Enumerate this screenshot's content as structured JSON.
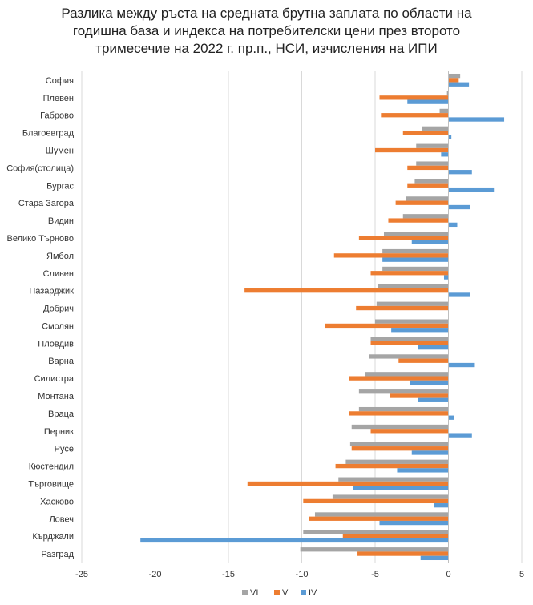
{
  "chart_data": {
    "type": "bar",
    "orientation": "horizontal",
    "title_lines": [
      "Разлика между ръста на средната брутна заплата по области на",
      "годишна база и индекса на потребителски цени през второто",
      "тримесечие на 2022 г. пр.п., НСИ, изчисления на ИПИ"
    ],
    "xlim": [
      -25,
      5
    ],
    "xticks": [
      -25,
      -20,
      -15,
      -10,
      -5,
      0,
      5
    ],
    "grid": true,
    "legend_position": "bottom",
    "categories": [
      "София",
      "Плевен",
      "Габрово",
      "Благоевград",
      "Шумен",
      "София(столица)",
      "Бургас",
      "Стара Загора",
      "Видин",
      "Велико Търново",
      "Ямбол",
      "Сливен",
      "Пазарджик",
      "Добрич",
      "Смолян",
      "Пловдив",
      "Варна",
      "Силистра",
      "Монтана",
      "Враца",
      "Перник",
      "Русе",
      "Кюстендил",
      "Търговище",
      "Хасково",
      "Ловеч",
      "Кърджали",
      "Разград"
    ],
    "series": [
      {
        "name": "VI",
        "color": "#a5a5a5",
        "values": [
          0.8,
          -0.1,
          -0.6,
          -1.8,
          -2.2,
          -2.2,
          -2.3,
          -2.9,
          -3.1,
          -4.4,
          -4.5,
          -4.5,
          -4.8,
          -4.9,
          -5.0,
          -5.3,
          -5.4,
          -5.7,
          -6.1,
          -6.1,
          -6.6,
          -6.7,
          -7.0,
          -7.5,
          -7.9,
          -9.1,
          -9.9,
          -10.1
        ]
      },
      {
        "name": "V",
        "color": "#ed7d31",
        "values": [
          0.7,
          -4.7,
          -4.6,
          -3.1,
          -5.0,
          -2.8,
          -2.8,
          -3.6,
          -4.1,
          -6.1,
          -7.8,
          -5.3,
          -13.9,
          -6.3,
          -8.4,
          -5.3,
          -3.4,
          -6.8,
          -4.0,
          -6.8,
          -5.3,
          -6.6,
          -7.7,
          -13.7,
          -9.9,
          -9.5,
          -7.2,
          -6.2
        ]
      },
      {
        "name": "IV",
        "color": "#5b9bd5",
        "values": [
          1.4,
          -2.8,
          3.8,
          0.2,
          -0.5,
          1.6,
          3.1,
          1.5,
          0.6,
          -2.5,
          -4.5,
          -0.3,
          1.5,
          0.0,
          -3.9,
          -2.1,
          1.8,
          -2.6,
          -2.1,
          0.4,
          1.6,
          -2.5,
          -3.5,
          -6.5,
          -1.0,
          -4.7,
          -21.0,
          -1.9
        ]
      }
    ]
  }
}
